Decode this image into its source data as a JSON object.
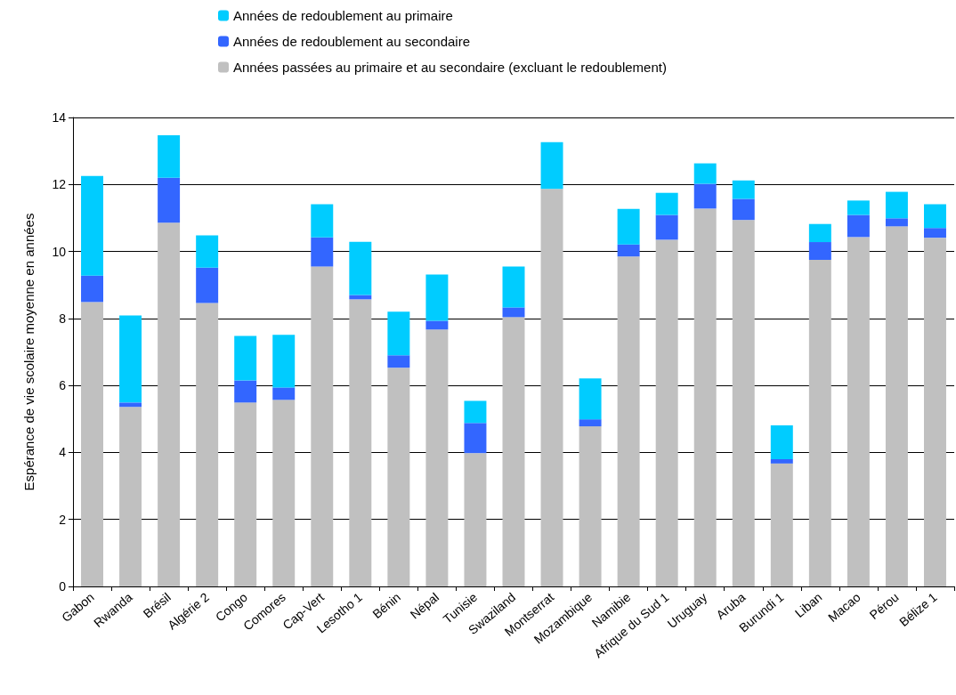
{
  "chart_data": {
    "type": "bar",
    "stacked": true,
    "ylabel": "Espérance de vie scolaire moyenne en années",
    "categories": [
      "Gabon",
      "Rwanda",
      "Brésil",
      "Algérie 2",
      "Congo",
      "Comores",
      "Cap-Vert",
      "Lesotho 1",
      "Bénin",
      "Népal",
      "Tunisie",
      "Swaziland",
      "Montserrat",
      "Mozambique",
      "Namibie",
      "Afrique du Sud 1",
      "Uruguay",
      "Aruba",
      "Burundi 1",
      "Liban",
      "Macao",
      "Pérou",
      "Bélize 1"
    ],
    "series": [
      {
        "name": "Années passées au primaire et au secondaire (excluant le redoublement)",
        "color": "#c0c0c0",
        "values": [
          8.49,
          5.36,
          10.86,
          8.46,
          5.49,
          5.57,
          9.55,
          8.57,
          6.53,
          7.67,
          3.98,
          8.04,
          11.87,
          4.78,
          9.85,
          10.35,
          11.28,
          10.94,
          3.67,
          9.75,
          10.43,
          10.75,
          10.41
        ]
      },
      {
        "name": "Années de redoublement au secondaire",
        "color": "#3366ff",
        "values": [
          0.79,
          0.13,
          1.34,
          1.06,
          0.66,
          0.37,
          0.87,
          0.13,
          0.37,
          0.26,
          0.9,
          0.29,
          0,
          0.21,
          0.36,
          0.74,
          0.74,
          0.63,
          0.13,
          0.53,
          0.66,
          0.24,
          0.29
        ]
      },
      {
        "name": "Années de redoublement au primaire",
        "color": "#00ccff",
        "values": [
          2.97,
          2.6,
          1.27,
          0.96,
          1.33,
          1.57,
          0.99,
          1.59,
          1.3,
          1.38,
          0.66,
          1.22,
          1.39,
          1.22,
          1.06,
          0.66,
          0.61,
          0.55,
          1.01,
          0.54,
          0.43,
          0.79,
          0.71
        ]
      }
    ],
    "ylim": [
      0,
      14
    ],
    "yticks": [
      0,
      2,
      4,
      6,
      8,
      10,
      12,
      14
    ],
    "grid": "y",
    "legend": "top"
  }
}
